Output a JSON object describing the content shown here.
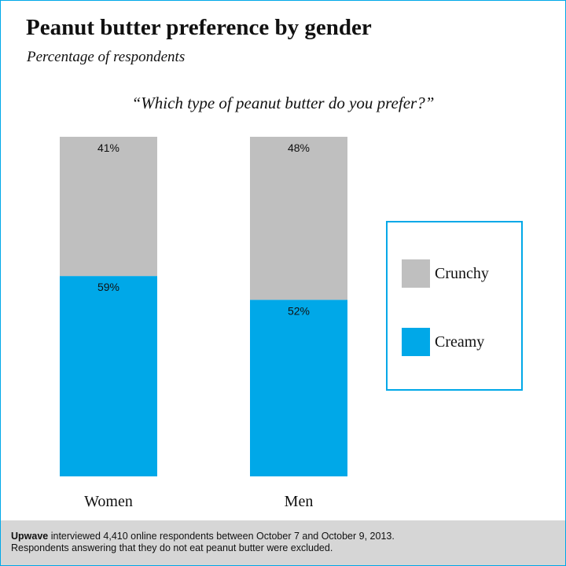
{
  "chart_data": {
    "type": "bar",
    "stacked": true,
    "title": "Peanut butter preference by gender",
    "subtitle": "Percentage of respondents",
    "question": "“Which type of peanut butter do you prefer?”",
    "categories": [
      "Women",
      "Men"
    ],
    "series": [
      {
        "name": "Creamy",
        "values": [
          59,
          52
        ],
        "labels": [
          "59%",
          "52%"
        ],
        "color": "#00a8e8"
      },
      {
        "name": "Crunchy",
        "values": [
          41,
          48
        ],
        "labels": [
          "41%",
          "48%"
        ],
        "color": "#bfbfbf"
      }
    ],
    "ylim": [
      0,
      100
    ],
    "grid": false,
    "legend_position": "right",
    "legend": [
      {
        "name": "Crunchy",
        "color": "#bfbfbf"
      },
      {
        "name": "Creamy",
        "color": "#00a8e8"
      }
    ]
  },
  "footer": {
    "brand": "Upwave",
    "line1_rest": " interviewed 4,410 online respondents between October 7 and October 9, 2013.",
    "line2": " Respondents answering that they do not eat peanut butter were excluded."
  },
  "colors": {
    "accent": "#00a8e8",
    "crunchy": "#bfbfbf",
    "footer_bg": "#d6d6d6"
  }
}
